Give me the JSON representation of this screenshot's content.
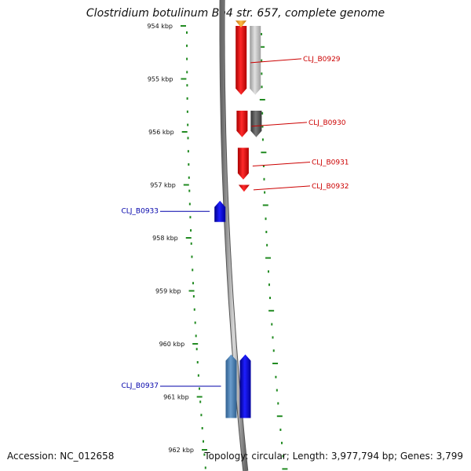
{
  "title": "Clostridium botulinum Ba4 str. 657, complete genome",
  "accession": "Accession: NC_012658",
  "summary": "Topology: circular; Length: 3,977,794 bp; Genes: 3,799",
  "colors": {
    "forward_cds": "#ff0000",
    "reverse_cds": "#0000ff",
    "reverse_cds_homolog": "#4a7fb5",
    "grey_light": "#c0c0c0",
    "grey_dark": "#555555",
    "orange": "#f0a020",
    "backbone": "#808080",
    "ruler_dots": "#228b22",
    "forward_label": "#cc0000",
    "reverse_label": "#0000aa"
  },
  "ruler_labels": [
    {
      "kbp": 954,
      "text": "954 kbp"
    },
    {
      "kbp": 955,
      "text": "955 kbp"
    },
    {
      "kbp": 956,
      "text": "956 kbp"
    },
    {
      "kbp": 957,
      "text": "957 kbp"
    },
    {
      "kbp": 958,
      "text": "958 kbp"
    },
    {
      "kbp": 959,
      "text": "959 kbp"
    },
    {
      "kbp": 960,
      "text": "960 kbp"
    },
    {
      "kbp": 961,
      "text": "961 kbp"
    },
    {
      "kbp": 962,
      "text": "962 kbp"
    }
  ],
  "features": [
    {
      "name": "CLJ_B0929",
      "strand": "forward",
      "start_kbp": 954.0,
      "end_kbp": 955.3,
      "color": "#ff0000"
    },
    {
      "name": "",
      "strand": "forward",
      "start_kbp": 954.0,
      "end_kbp": 955.3,
      "color": "#c0c0c0"
    },
    {
      "name": "",
      "strand": "forward",
      "start_kbp": 953.9,
      "end_kbp": 954.0,
      "color": "#f0a020"
    },
    {
      "name": "CLJ_B0930",
      "strand": "forward",
      "start_kbp": 955.6,
      "end_kbp": 956.1,
      "color": "#ff0000"
    },
    {
      "name": "",
      "strand": "forward",
      "start_kbp": 955.6,
      "end_kbp": 956.1,
      "color": "#555555"
    },
    {
      "name": "CLJ_B0931",
      "strand": "forward",
      "start_kbp": 956.3,
      "end_kbp": 956.9,
      "color": "#ff0000"
    },
    {
      "name": "CLJ_B0932",
      "strand": "forward",
      "start_kbp": 957.0,
      "end_kbp": 957.1,
      "color": "#ff0000"
    },
    {
      "name": "CLJ_B0933",
      "strand": "reverse",
      "start_kbp": 957.3,
      "end_kbp": 957.7,
      "color": "#0000ff"
    },
    {
      "name": "CLJ_B0937",
      "strand": "reverse",
      "start_kbp": 960.2,
      "end_kbp": 961.4,
      "color": "#4a7fb5"
    },
    {
      "name": "",
      "strand": "reverse",
      "start_kbp": 960.2,
      "end_kbp": 961.4,
      "color": "#0000ff"
    }
  ]
}
